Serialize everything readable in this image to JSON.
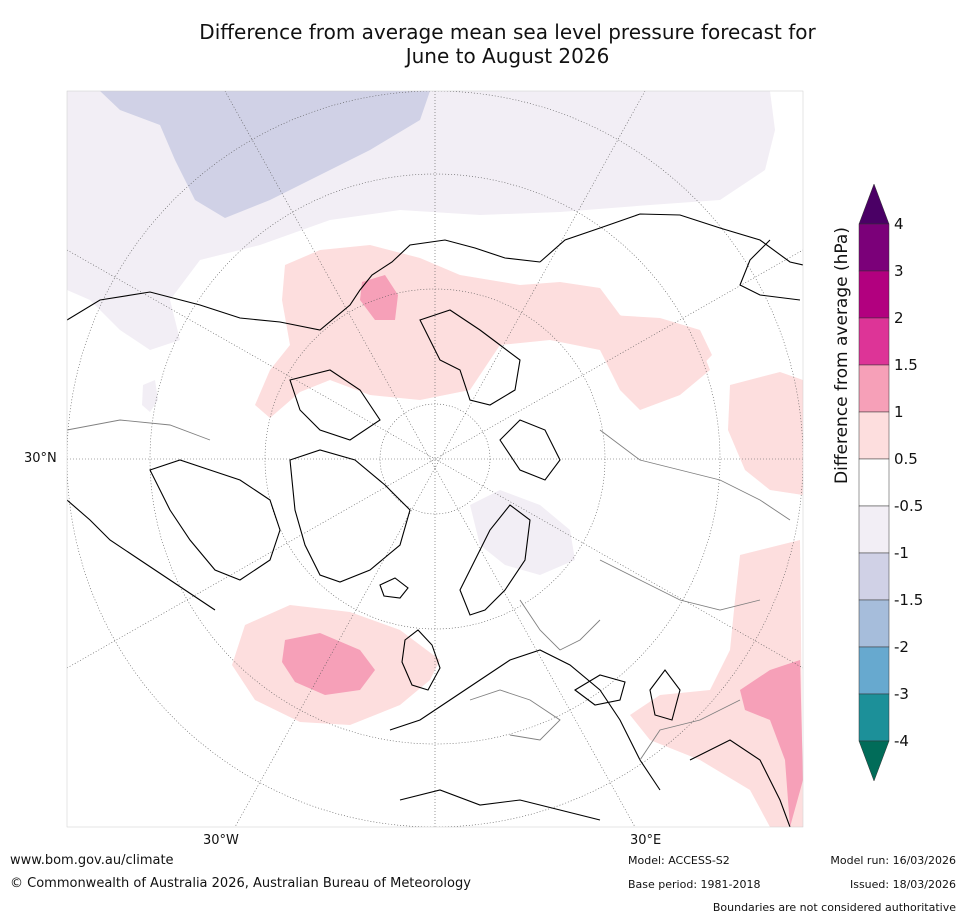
{
  "title": {
    "line1": "Difference from average mean sea level pressure forecast for",
    "line2": "June to August 2026"
  },
  "map": {
    "projection": "north polar stereographic",
    "lat_labels": [
      "30°N"
    ],
    "lon_labels": [
      "30°W",
      "30°E"
    ],
    "colors": {
      "land_outline": "#000000",
      "border": "#808080",
      "grid": "#555555"
    }
  },
  "colorbar": {
    "title": "Difference from average (hPa)",
    "tick_labels": [
      "4",
      "3",
      "2",
      "1.5",
      "1",
      "0.5",
      "-0.5",
      "-1",
      "-1.5",
      "-2",
      "-3",
      "-4"
    ],
    "bins": [
      {
        "from": 3,
        "to": 4,
        "color": "#7b0079"
      },
      {
        "from": 2,
        "to": 3,
        "color": "#b2007f"
      },
      {
        "from": 1.5,
        "to": 2,
        "color": "#dd3497"
      },
      {
        "from": 1,
        "to": 1.5,
        "color": "#f6a0b8"
      },
      {
        "from": 0.5,
        "to": 1,
        "color": "#fddede"
      },
      {
        "from": -0.5,
        "to": 0.5,
        "color": "#ffffff"
      },
      {
        "from": -1,
        "to": -0.5,
        "color": "#f2eef5"
      },
      {
        "from": -1.5,
        "to": -1,
        "color": "#d0d1e6"
      },
      {
        "from": -2,
        "to": -1.5,
        "color": "#a6bddb"
      },
      {
        "from": -3,
        "to": -2,
        "color": "#67a9cf"
      },
      {
        "from": -4,
        "to": -3,
        "color": "#1c9099"
      }
    ],
    "over_color": "#4a0065",
    "under_color": "#016c59"
  },
  "footer": {
    "website": "www.bom.gov.au/climate",
    "copyright": "© Commonwealth of Australia 2026, Australian Bureau of Meteorology",
    "model": "Model: ACCESS-S2",
    "base_period": "Base period: 1981-2018",
    "model_run": "Model run: 16/03/2026",
    "issued": "Issued: 18/03/2026",
    "disclaimer": "Boundaries are not considered authoritative"
  }
}
